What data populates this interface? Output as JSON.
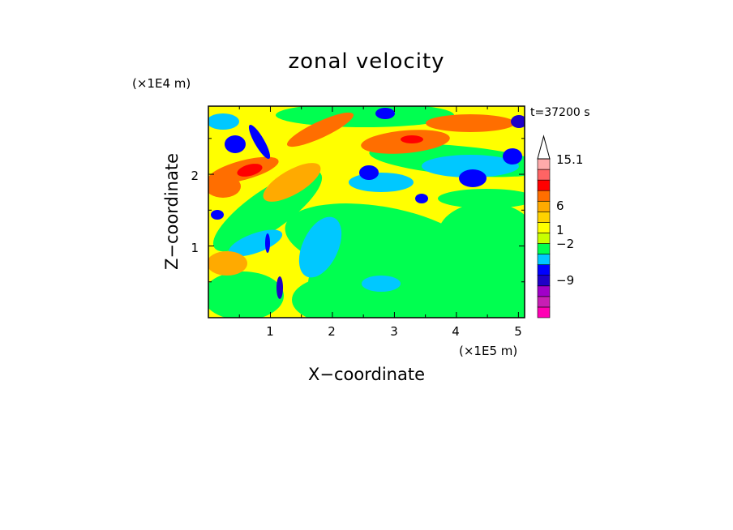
{
  "chart_data": {
    "type": "heatmap",
    "title": "zonal velocity",
    "xlabel": "X−coordinate",
    "ylabel": "Z−coordinate",
    "x_scale_label": "(×1E5 m)",
    "y_scale_label": "(×1E4 m)",
    "time_label": "t=37200 s",
    "xlim": [
      0,
      5.1
    ],
    "ylim": [
      0,
      2.95
    ],
    "x_ticks": [
      "1",
      "2",
      "3",
      "4",
      "5"
    ],
    "y_ticks": [
      "1",
      "2"
    ],
    "colorbar": {
      "tick_labels": [
        "15.1",
        "6",
        "1",
        "−2",
        "−9"
      ],
      "levels": [
        "#ff00b4",
        "#c81eb4",
        "#a000c8",
        "#1e00c8",
        "#0000ff",
        "#00c8ff",
        "#00ff50",
        "#c8ff00",
        "#ffff00",
        "#ffd200",
        "#ffaa00",
        "#ff6e00",
        "#ff0000",
        "#ff6464",
        "#ffaaaa",
        "#ffffff"
      ]
    },
    "dominant_regions": [
      {
        "description": "positive bands",
        "color": "#ff6e00"
      },
      {
        "description": "background",
        "color": "#ffff00"
      },
      {
        "description": "weak negative",
        "color": "#00ff50"
      },
      {
        "description": "negative blobs",
        "color": "#0000ff"
      }
    ]
  }
}
